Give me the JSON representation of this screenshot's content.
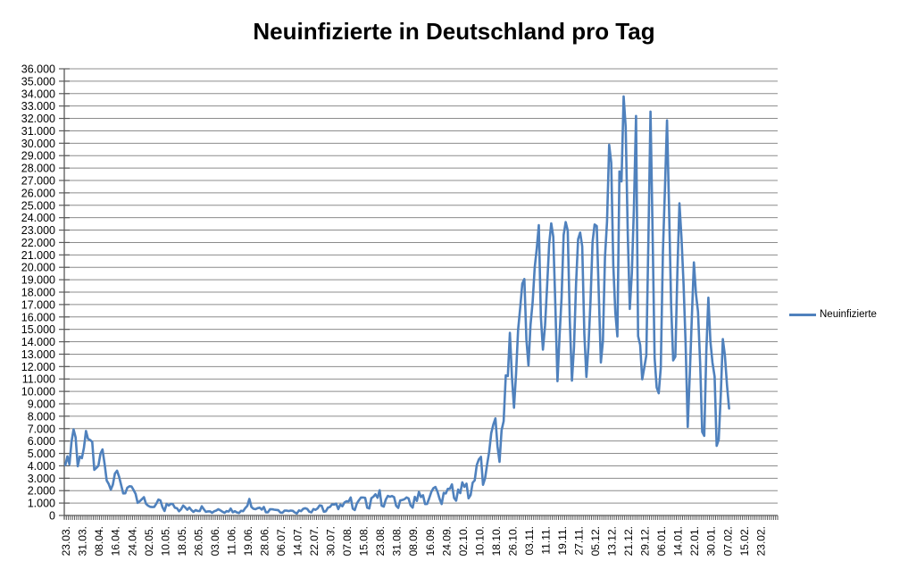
{
  "title": "Neuinfizierte in Deutschland pro Tag",
  "colors": {
    "series": "#4F81BD",
    "gridline": "#8C8C8C",
    "axis": "#595959",
    "text": "#000000",
    "background": "#FFFFFF"
  },
  "legend": {
    "label": "Neuinfizierte",
    "position": "right"
  },
  "chart_data": {
    "type": "line",
    "title": "Neuinfizierte in Deutschland pro Tag",
    "xlabel": "",
    "ylabel": "",
    "grid": true,
    "legend_position": "right",
    "ylim": [
      0,
      36000
    ],
    "y_tick_step": 1000,
    "y_tick_labels": [
      "0",
      "1.000",
      "2.000",
      "3.000",
      "4.000",
      "5.000",
      "6.000",
      "7.000",
      "8.000",
      "9.000",
      "10.000",
      "11.000",
      "12.000",
      "13.000",
      "14.000",
      "15.000",
      "16.000",
      "17.000",
      "18.000",
      "19.000",
      "20.000",
      "21.000",
      "22.000",
      "23.000",
      "24.000",
      "25.000",
      "26.000",
      "27.000",
      "28.000",
      "29.000",
      "30.000",
      "31.000",
      "32.000",
      "33.000",
      "34.000",
      "35.000",
      "36.000"
    ],
    "x_tick_labels": [
      "23.03.",
      "31.03.",
      "08.04.",
      "16.04.",
      "24.04.",
      "02.05.",
      "10.05.",
      "18.05.",
      "26.05.",
      "03.06.",
      "11.06.",
      "19.06.",
      "28.06.",
      "06.07.",
      "14.07.",
      "22.07.",
      "30.07.",
      "07.08.",
      "15.08.",
      "23.08.",
      "31.08.",
      "08.09.",
      "16.09.",
      "24.09.",
      "02.10.",
      "10.10.",
      "18.10.",
      "26.10.",
      "03.11.",
      "11.11.",
      "19.11.",
      "27.11.",
      "05.12.",
      "13.12.",
      "21.12.",
      "29.12.",
      "06.01.",
      "14.01.",
      "22.01.",
      "30.01.",
      "07.02.",
      "15.02.",
      "23.02."
    ],
    "x_start": "23.03.2020",
    "x_frequency": "daily",
    "x_label_every_days": 8,
    "x_axis_total_days": 345,
    "series": [
      {
        "name": "Neuinfizierte",
        "color": "#4F81BD",
        "values": [
          4062,
          4764,
          4118,
          5940,
          6933,
          6294,
          3965,
          4751,
          4615,
          5453,
          6813,
          6174,
          6082,
          5936,
          3677,
          3834,
          4003,
          4974,
          5323,
          4133,
          2821,
          2537,
          2082,
          2486,
          3380,
          3609,
          3118,
          2458,
          1775,
          1785,
          2237,
          2352,
          2337,
          2055,
          1737,
          1018,
          1144,
          1304,
          1478,
          945,
          793,
          697,
          679,
          685,
          947,
          1284,
          1209,
          667,
          357,
          933,
          798,
          933,
          913,
          620,
          583,
          342,
          513,
          797,
          639,
          460,
          638,
          431,
          289,
          432,
          362,
          353,
          741,
          507,
          286,
          333,
          333,
          213,
          342,
          394,
          507,
          407,
          301,
          214,
          350,
          318,
          555,
          258,
          348,
          247,
          192,
          378,
          345,
          580,
          770,
          1331,
          687,
          537,
          503,
          587,
          630,
          477,
          687,
          256,
          262,
          498,
          503,
          466,
          446,
          422,
          239,
          219,
          390,
          397,
          356,
          395,
          378,
          248,
          159,
          412,
          345,
          534,
          583,
          529,
          305,
          249,
          522,
          454,
          569,
          815,
          781,
          305,
          340,
          633,
          684,
          902,
          870,
          955,
          509,
          879,
          741,
          1045,
          1147,
          1122,
          1449,
          555,
          436,
          966,
          1226,
          1445,
          1449,
          1415,
          625,
          561,
          1390,
          1510,
          1707,
          1427,
          2034,
          782,
          711,
          1278,
          1576,
          1507,
          1571,
          1479,
          785,
          610,
          1218,
          1256,
          1311,
          1453,
          1378,
          814,
          633,
          1499,
          1176,
          1892,
          1484,
          1630,
          920,
          927,
          1407,
          1901,
          2194,
          2297,
          1916,
          1345,
          922,
          1821,
          1769,
          2143,
          2153,
          2507,
          1411,
          1192,
          2089,
          1798,
          2673,
          2305,
          2563,
          1382,
          1642,
          2639,
          2828,
          4058,
          4516,
          4721,
          2467,
          2987,
          4122,
          5132,
          6638,
          7334,
          7830,
          5587,
          4325,
          6868,
          7595,
          11287,
          11242,
          14714,
          11176,
          8685,
          11409,
          14964,
          16774,
          18681,
          19059,
          14177,
          12097,
          15352,
          17214,
          19990,
          21506,
          23399,
          16017,
          13363,
          15332,
          18487,
          21866,
          23542,
          22461,
          16947,
          10824,
          14419,
          17561,
          22609,
          23648,
          22964,
          15741,
          10864,
          13554,
          18633,
          22268,
          22806,
          21695,
          14611,
          11169,
          13604,
          17270,
          22046,
          23449,
          23318,
          17767,
          12332,
          14054,
          20815,
          23679,
          29875,
          28438,
          20200,
          16362,
          14432,
          27728,
          26923,
          33777,
          31300,
          22771,
          16643,
          19528,
          24740,
          32195,
          14455,
          13755,
          10976,
          11912,
          12892,
          22459,
          32552,
          22924,
          12690,
          10315,
          9847,
          11897,
          21237,
          26391,
          31849,
          24694,
          16946,
          12497,
          12802,
          19600,
          25164,
          22368,
          18678,
          13882,
          7141,
          11369,
          15974,
          20398,
          17862,
          16417,
          12257,
          6729,
          6412,
          13202,
          17553,
          14022,
          12321,
          11192,
          5608,
          6114,
          9705,
          14211,
          12908,
          10485,
          8616
        ]
      }
    ]
  }
}
